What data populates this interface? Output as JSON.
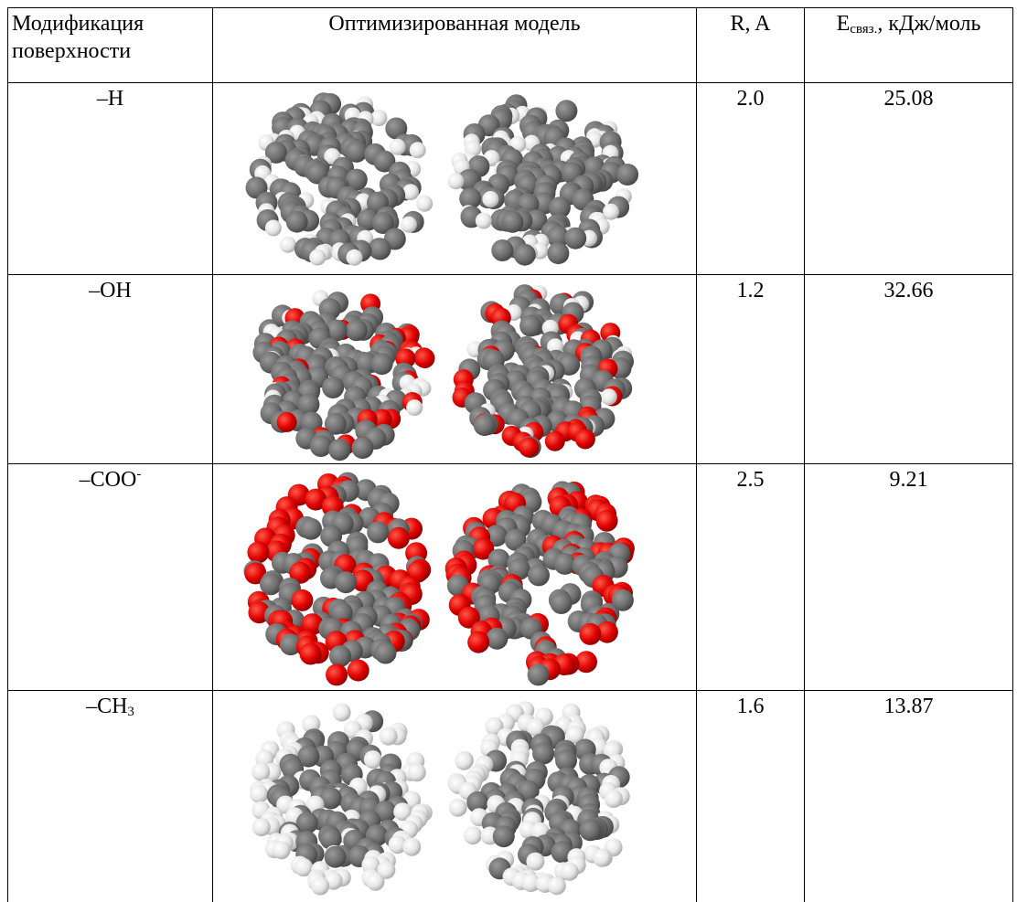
{
  "table": {
    "header": {
      "modification": "Модификация поверхности",
      "model": "Оптимизированная модель",
      "r": "R, A",
      "energy": {
        "main": "E",
        "sub": "связ.",
        "rest": ", кДж/моль"
      }
    },
    "rows": [
      {
        "group": {
          "main": "–H"
        },
        "r": "2.0",
        "energy": "25.08"
      },
      {
        "group": {
          "main": "–OH"
        },
        "r": "1.2",
        "energy": "32.66"
      },
      {
        "group": {
          "main": "–COO",
          "sup": "-"
        },
        "r": "2.5",
        "energy": "9.21"
      },
      {
        "group": {
          "main": "–CH",
          "sub": "3"
        },
        "r": "1.6",
        "energy": "13.87"
      }
    ]
  }
}
